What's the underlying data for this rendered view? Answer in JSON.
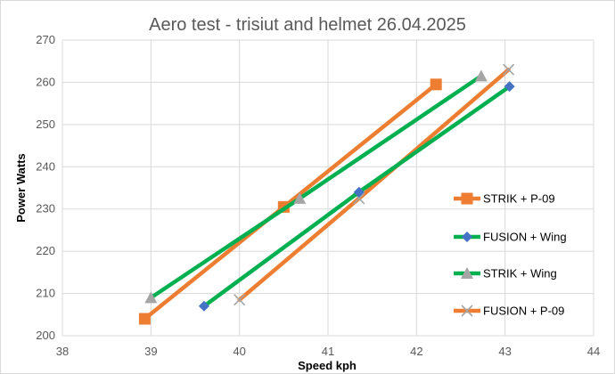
{
  "chart_data": {
    "type": "line",
    "title": "Aero test - trisiut and helmet 26.04.2025",
    "xlabel": "Speed kph",
    "ylabel": "Power Watts",
    "xlim": [
      38,
      44
    ],
    "ylim": [
      200,
      270
    ],
    "x_ticks": [
      "38",
      "39",
      "40",
      "41",
      "42",
      "43",
      "44"
    ],
    "y_ticks": [
      "200",
      "210",
      "220",
      "230",
      "240",
      "250",
      "260",
      "270"
    ],
    "grid": true,
    "legend_position": "right",
    "series": [
      {
        "name": "STRIK + P-09",
        "line_color": "#ed7d31",
        "marker": "square",
        "marker_color": "#ed7d31",
        "points": [
          [
            38.93,
            204
          ],
          [
            40.5,
            230.5
          ],
          [
            42.22,
            259.5
          ]
        ]
      },
      {
        "name": "FUSION + Wing",
        "line_color": "#00b050",
        "marker": "diamond",
        "marker_color": "#4472c4",
        "points": [
          [
            39.6,
            207
          ],
          [
            41.35,
            234
          ],
          [
            43.05,
            259
          ]
        ]
      },
      {
        "name": "STRIK + Wing",
        "line_color": "#00b050",
        "marker": "triangle",
        "marker_color": "#a5a5a5",
        "points": [
          [
            39.0,
            209
          ],
          [
            40.68,
            232.5
          ],
          [
            42.73,
            261.5
          ]
        ]
      },
      {
        "name": "FUSION + P-09",
        "line_color": "#ed7d31",
        "marker": "x",
        "marker_color": "#a5a5a5",
        "points": [
          [
            40.0,
            208.5
          ],
          [
            41.35,
            232.5
          ],
          [
            43.04,
            263
          ]
        ]
      }
    ]
  }
}
